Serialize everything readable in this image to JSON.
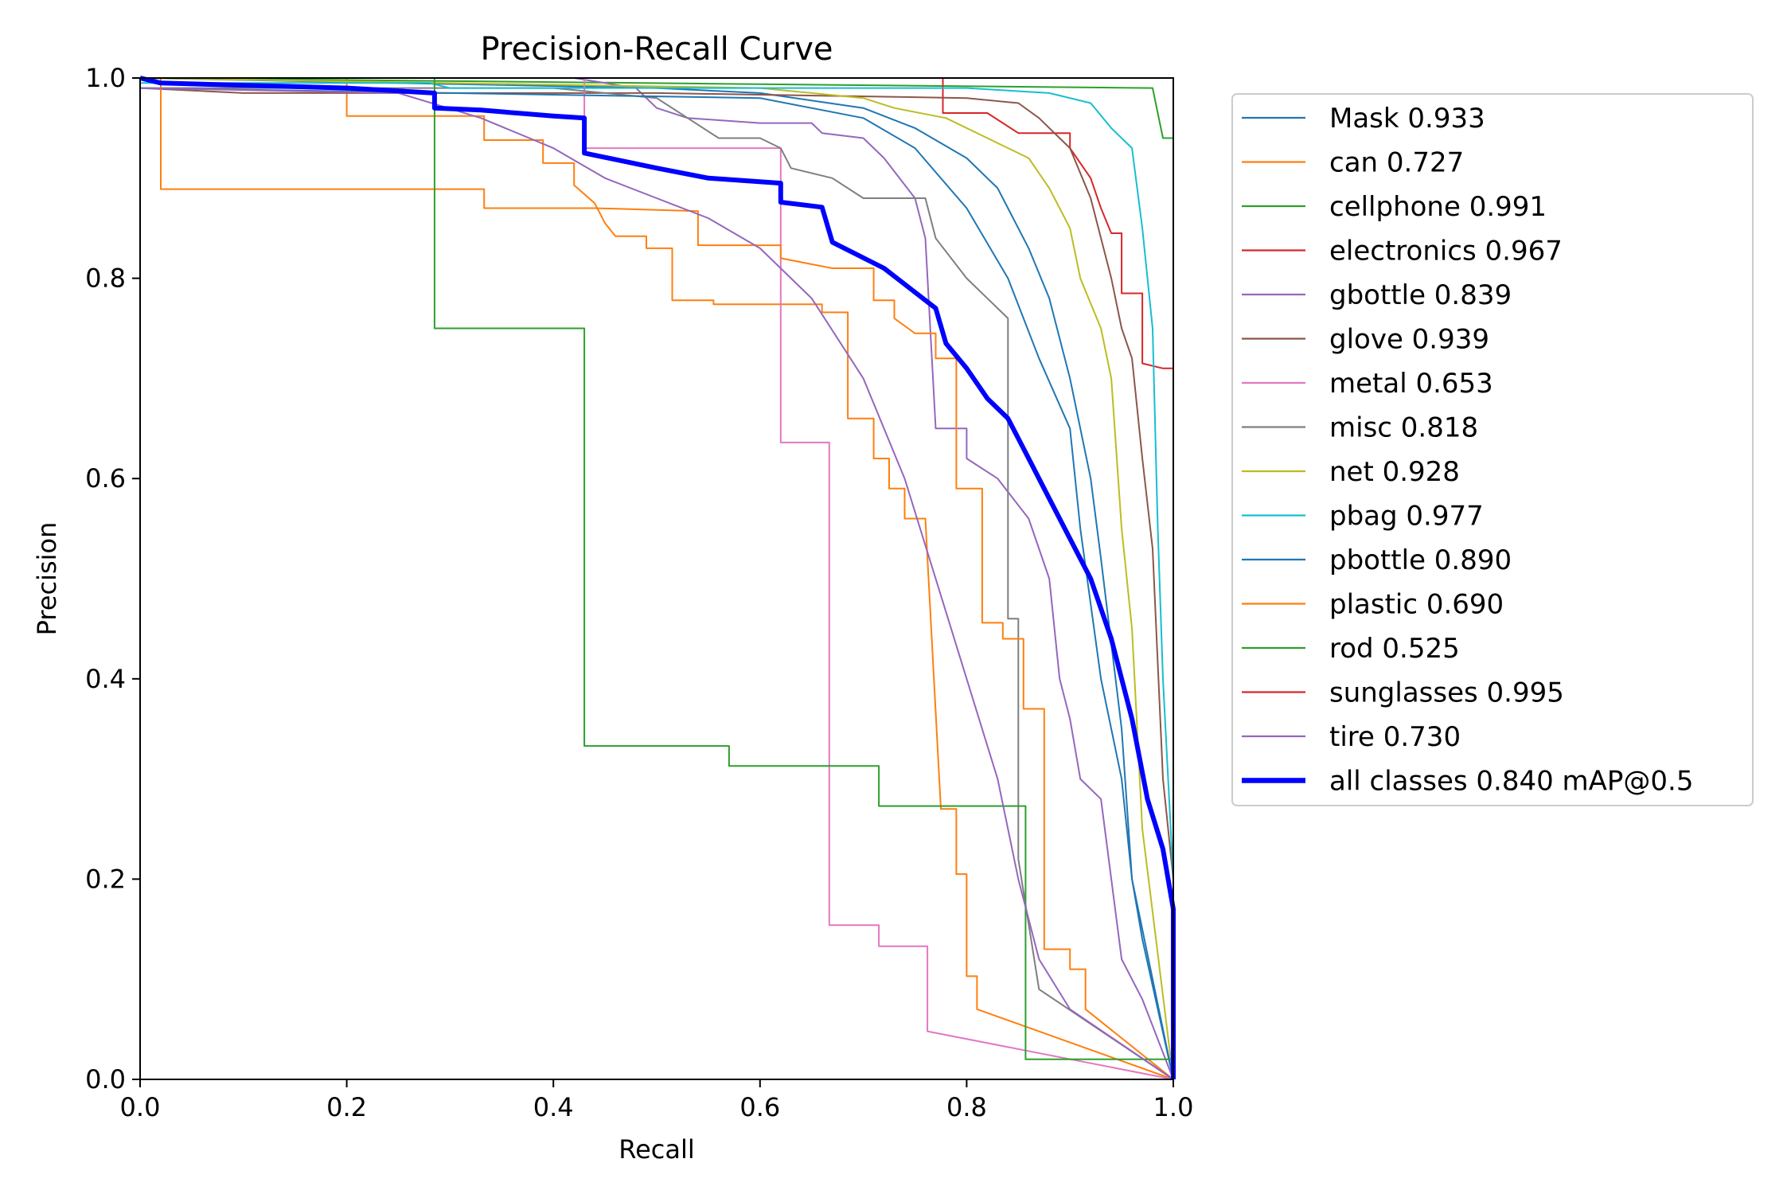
{
  "chart_data": {
    "type": "line",
    "title": "Precision-Recall Curve",
    "xlabel": "Recall",
    "ylabel": "Precision",
    "xlim": [
      0,
      1
    ],
    "ylim": [
      0,
      1
    ],
    "xticks": [
      "0.0",
      "0.2",
      "0.4",
      "0.6",
      "0.8",
      "1.0"
    ],
    "yticks": [
      "0.0",
      "0.2",
      "0.4",
      "0.6",
      "0.8",
      "1.0"
    ],
    "grid": false,
    "legend_placement": "outside-right",
    "series": [
      {
        "name": "Mask 0.933",
        "color": "#1f77b4",
        "width": 1,
        "points": [
          [
            0,
            1
          ],
          [
            0.5,
            0.99
          ],
          [
            0.6,
            0.985
          ],
          [
            0.7,
            0.97
          ],
          [
            0.75,
            0.95
          ],
          [
            0.8,
            0.92
          ],
          [
            0.83,
            0.89
          ],
          [
            0.86,
            0.83
          ],
          [
            0.88,
            0.78
          ],
          [
            0.9,
            0.7
          ],
          [
            0.92,
            0.6
          ],
          [
            0.93,
            0.52
          ],
          [
            0.95,
            0.35
          ],
          [
            0.96,
            0.2
          ],
          [
            0.97,
            0.14
          ],
          [
            1,
            0
          ]
        ]
      },
      {
        "name": "can 0.727",
        "color": "#ff7f0e",
        "width": 1,
        "points": [
          [
            0,
            1
          ],
          [
            0.2,
            1
          ],
          [
            0.2,
            0.962
          ],
          [
            0.333,
            0.962
          ],
          [
            0.333,
            0.938
          ],
          [
            0.39,
            0.938
          ],
          [
            0.39,
            0.915
          ],
          [
            0.42,
            0.915
          ],
          [
            0.42,
            0.893
          ],
          [
            0.44,
            0.875
          ],
          [
            0.45,
            0.855
          ],
          [
            0.46,
            0.842
          ],
          [
            0.49,
            0.842
          ],
          [
            0.49,
            0.83
          ],
          [
            0.515,
            0.83
          ],
          [
            0.515,
            0.778
          ],
          [
            0.555,
            0.778
          ],
          [
            0.555,
            0.774
          ],
          [
            0.66,
            0.774
          ],
          [
            0.66,
            0.766
          ],
          [
            0.685,
            0.766
          ],
          [
            0.685,
            0.66
          ],
          [
            0.71,
            0.66
          ],
          [
            0.71,
            0.62
          ],
          [
            0.725,
            0.62
          ],
          [
            0.725,
            0.59
          ],
          [
            0.74,
            0.59
          ],
          [
            0.74,
            0.56
          ],
          [
            0.76,
            0.56
          ],
          [
            0.775,
            0.27
          ],
          [
            0.79,
            0.27
          ],
          [
            0.79,
            0.205
          ],
          [
            0.8,
            0.205
          ],
          [
            0.8,
            0.103
          ],
          [
            0.81,
            0.103
          ],
          [
            0.81,
            0.07
          ],
          [
            1,
            0
          ]
        ]
      },
      {
        "name": "cellphone 0.991",
        "color": "#2ca02c",
        "width": 1,
        "points": [
          [
            0,
            1
          ],
          [
            0.98,
            0.99
          ],
          [
            0.99,
            0.94
          ],
          [
            1,
            0.94
          ],
          [
            1,
            0
          ]
        ]
      },
      {
        "name": "electronics 0.967",
        "color": "#d62728",
        "width": 1,
        "points": [
          [
            0,
            1
          ],
          [
            0.777,
            1
          ],
          [
            0.777,
            0.965
          ],
          [
            0.82,
            0.965
          ],
          [
            0.85,
            0.945
          ],
          [
            0.9,
            0.945
          ],
          [
            0.9,
            0.93
          ],
          [
            0.92,
            0.9
          ],
          [
            0.93,
            0.87
          ],
          [
            0.94,
            0.845
          ],
          [
            0.95,
            0.845
          ],
          [
            0.95,
            0.785
          ],
          [
            0.97,
            0.785
          ],
          [
            0.97,
            0.715
          ],
          [
            0.99,
            0.71
          ],
          [
            1,
            0.71
          ],
          [
            1,
            0
          ]
        ]
      },
      {
        "name": "gbottle 0.839",
        "color": "#9467bd",
        "width": 1,
        "points": [
          [
            0.42,
            1
          ],
          [
            0.48,
            0.99
          ],
          [
            0.5,
            0.97
          ],
          [
            0.53,
            0.96
          ],
          [
            0.6,
            0.955
          ],
          [
            0.65,
            0.955
          ],
          [
            0.66,
            0.945
          ],
          [
            0.7,
            0.94
          ],
          [
            0.72,
            0.92
          ],
          [
            0.75,
            0.88
          ],
          [
            0.76,
            0.84
          ],
          [
            0.77,
            0.65
          ],
          [
            0.8,
            0.65
          ],
          [
            0.8,
            0.62
          ],
          [
            0.83,
            0.6
          ],
          [
            0.86,
            0.56
          ],
          [
            0.88,
            0.5
          ],
          [
            0.89,
            0.4
          ],
          [
            0.9,
            0.36
          ],
          [
            0.91,
            0.3
          ],
          [
            0.93,
            0.28
          ],
          [
            0.94,
            0.2
          ],
          [
            0.95,
            0.12
          ],
          [
            0.97,
            0.08
          ],
          [
            1,
            0
          ]
        ]
      },
      {
        "name": "glove 0.939",
        "color": "#8c564b",
        "width": 1,
        "points": [
          [
            0,
            0.99
          ],
          [
            0.1,
            0.985
          ],
          [
            0.5,
            0.985
          ],
          [
            0.8,
            0.98
          ],
          [
            0.85,
            0.975
          ],
          [
            0.87,
            0.96
          ],
          [
            0.9,
            0.93
          ],
          [
            0.92,
            0.88
          ],
          [
            0.94,
            0.8
          ],
          [
            0.95,
            0.75
          ],
          [
            0.96,
            0.72
          ],
          [
            0.97,
            0.62
          ],
          [
            0.98,
            0.53
          ],
          [
            0.99,
            0.3
          ],
          [
            1,
            0.2
          ],
          [
            1,
            0
          ]
        ]
      },
      {
        "name": "metal 0.653",
        "color": "#e377c2",
        "width": 1,
        "points": [
          [
            0,
            1
          ],
          [
            0.43,
            1
          ],
          [
            0.43,
            0.93
          ],
          [
            0.62,
            0.93
          ],
          [
            0.62,
            0.636
          ],
          [
            0.667,
            0.636
          ],
          [
            0.667,
            0.154
          ],
          [
            0.715,
            0.154
          ],
          [
            0.715,
            0.133
          ],
          [
            0.762,
            0.133
          ],
          [
            0.762,
            0.048
          ],
          [
            1,
            0
          ]
        ]
      },
      {
        "name": "misc 0.818",
        "color": "#7f7f7f",
        "width": 1,
        "points": [
          [
            0,
            0.99
          ],
          [
            0.4,
            0.99
          ],
          [
            0.5,
            0.98
          ],
          [
            0.53,
            0.96
          ],
          [
            0.56,
            0.94
          ],
          [
            0.6,
            0.94
          ],
          [
            0.62,
            0.93
          ],
          [
            0.63,
            0.91
          ],
          [
            0.67,
            0.9
          ],
          [
            0.7,
            0.88
          ],
          [
            0.76,
            0.88
          ],
          [
            0.77,
            0.84
          ],
          [
            0.8,
            0.8
          ],
          [
            0.82,
            0.78
          ],
          [
            0.84,
            0.76
          ],
          [
            0.84,
            0.46
          ],
          [
            0.85,
            0.46
          ],
          [
            0.85,
            0.22
          ],
          [
            0.87,
            0.09
          ],
          [
            1,
            0
          ]
        ]
      },
      {
        "name": "net 0.928",
        "color": "#bcbd22",
        "width": 1,
        "points": [
          [
            0,
            1
          ],
          [
            0.6,
            0.99
          ],
          [
            0.7,
            0.98
          ],
          [
            0.73,
            0.97
          ],
          [
            0.78,
            0.96
          ],
          [
            0.82,
            0.94
          ],
          [
            0.86,
            0.92
          ],
          [
            0.88,
            0.89
          ],
          [
            0.9,
            0.85
          ],
          [
            0.91,
            0.8
          ],
          [
            0.93,
            0.75
          ],
          [
            0.94,
            0.7
          ],
          [
            0.95,
            0.55
          ],
          [
            0.96,
            0.45
          ],
          [
            0.97,
            0.25
          ],
          [
            1,
            0
          ]
        ]
      },
      {
        "name": "pbag 0.977",
        "color": "#17becf",
        "width": 1,
        "points": [
          [
            0,
            0.995
          ],
          [
            0.28,
            0.995
          ],
          [
            0.3,
            0.99
          ],
          [
            0.8,
            0.99
          ],
          [
            0.88,
            0.985
          ],
          [
            0.92,
            0.975
          ],
          [
            0.94,
            0.95
          ],
          [
            0.96,
            0.93
          ],
          [
            0.97,
            0.85
          ],
          [
            0.98,
            0.75
          ],
          [
            0.985,
            0.55
          ],
          [
            0.99,
            0.4
          ],
          [
            1,
            0.2
          ],
          [
            1,
            0
          ]
        ]
      },
      {
        "name": "pbottle 0.890",
        "color": "#1f77b4",
        "width": 1,
        "points": [
          [
            0,
            0.99
          ],
          [
            0.6,
            0.98
          ],
          [
            0.7,
            0.96
          ],
          [
            0.75,
            0.93
          ],
          [
            0.8,
            0.87
          ],
          [
            0.84,
            0.8
          ],
          [
            0.87,
            0.72
          ],
          [
            0.9,
            0.65
          ],
          [
            0.91,
            0.55
          ],
          [
            0.93,
            0.4
          ],
          [
            0.95,
            0.3
          ],
          [
            0.96,
            0.2
          ],
          [
            0.98,
            0.1
          ],
          [
            1,
            0
          ]
        ]
      },
      {
        "name": "plastic 0.690",
        "color": "#ff7f0e",
        "width": 1,
        "points": [
          [
            0,
            1
          ],
          [
            0.02,
            1
          ],
          [
            0.02,
            0.889
          ],
          [
            0.333,
            0.889
          ],
          [
            0.333,
            0.87
          ],
          [
            0.44,
            0.87
          ],
          [
            0.54,
            0.867
          ],
          [
            0.54,
            0.833
          ],
          [
            0.62,
            0.833
          ],
          [
            0.62,
            0.82
          ],
          [
            0.67,
            0.81
          ],
          [
            0.71,
            0.81
          ],
          [
            0.71,
            0.778
          ],
          [
            0.73,
            0.778
          ],
          [
            0.73,
            0.76
          ],
          [
            0.75,
            0.745
          ],
          [
            0.77,
            0.745
          ],
          [
            0.77,
            0.72
          ],
          [
            0.79,
            0.72
          ],
          [
            0.79,
            0.59
          ],
          [
            0.815,
            0.59
          ],
          [
            0.815,
            0.456
          ],
          [
            0.835,
            0.456
          ],
          [
            0.835,
            0.44
          ],
          [
            0.855,
            0.44
          ],
          [
            0.855,
            0.37
          ],
          [
            0.875,
            0.37
          ],
          [
            0.875,
            0.13
          ],
          [
            0.9,
            0.13
          ],
          [
            0.9,
            0.11
          ],
          [
            0.915,
            0.11
          ],
          [
            0.915,
            0.07
          ],
          [
            1,
            0
          ]
        ]
      },
      {
        "name": "rod 0.525",
        "color": "#2ca02c",
        "width": 1,
        "points": [
          [
            0,
            1
          ],
          [
            0.285,
            1
          ],
          [
            0.285,
            0.75
          ],
          [
            0.43,
            0.75
          ],
          [
            0.43,
            0.333
          ],
          [
            0.57,
            0.333
          ],
          [
            0.57,
            0.313
          ],
          [
            0.715,
            0.313
          ],
          [
            0.715,
            0.273
          ],
          [
            0.857,
            0.273
          ],
          [
            0.857,
            0.02
          ],
          [
            1,
            0.02
          ],
          [
            1,
            0
          ]
        ]
      },
      {
        "name": "sunglasses 0.995",
        "color": "#d62728",
        "width": 1,
        "points": [
          [
            0,
            1
          ],
          [
            1,
            1
          ],
          [
            1,
            0
          ]
        ]
      },
      {
        "name": "tire 0.730",
        "color": "#9467bd",
        "width": 1,
        "points": [
          [
            0,
            0.99
          ],
          [
            0.25,
            0.985
          ],
          [
            0.33,
            0.96
          ],
          [
            0.4,
            0.93
          ],
          [
            0.45,
            0.9
          ],
          [
            0.5,
            0.88
          ],
          [
            0.55,
            0.86
          ],
          [
            0.6,
            0.83
          ],
          [
            0.65,
            0.78
          ],
          [
            0.7,
            0.7
          ],
          [
            0.74,
            0.6
          ],
          [
            0.77,
            0.5
          ],
          [
            0.8,
            0.4
          ],
          [
            0.83,
            0.3
          ],
          [
            0.85,
            0.2
          ],
          [
            0.87,
            0.12
          ],
          [
            0.9,
            0.07
          ],
          [
            1,
            0
          ]
        ]
      },
      {
        "name": "all classes 0.840 mAP@0.5",
        "color": "#0000ff",
        "width": 3,
        "points": [
          [
            0,
            1
          ],
          [
            0.02,
            0.995
          ],
          [
            0.2,
            0.99
          ],
          [
            0.285,
            0.985
          ],
          [
            0.285,
            0.97
          ],
          [
            0.33,
            0.968
          ],
          [
            0.4,
            0.962
          ],
          [
            0.43,
            0.96
          ],
          [
            0.43,
            0.925
          ],
          [
            0.5,
            0.91
          ],
          [
            0.55,
            0.9
          ],
          [
            0.62,
            0.895
          ],
          [
            0.62,
            0.876
          ],
          [
            0.66,
            0.871
          ],
          [
            0.67,
            0.836
          ],
          [
            0.72,
            0.81
          ],
          [
            0.77,
            0.77
          ],
          [
            0.78,
            0.735
          ],
          [
            0.8,
            0.71
          ],
          [
            0.82,
            0.68
          ],
          [
            0.84,
            0.66
          ],
          [
            0.86,
            0.62
          ],
          [
            0.88,
            0.58
          ],
          [
            0.9,
            0.54
          ],
          [
            0.92,
            0.5
          ],
          [
            0.94,
            0.44
          ],
          [
            0.96,
            0.36
          ],
          [
            0.975,
            0.28
          ],
          [
            0.99,
            0.23
          ],
          [
            1,
            0.17
          ],
          [
            1,
            0
          ]
        ]
      }
    ]
  }
}
